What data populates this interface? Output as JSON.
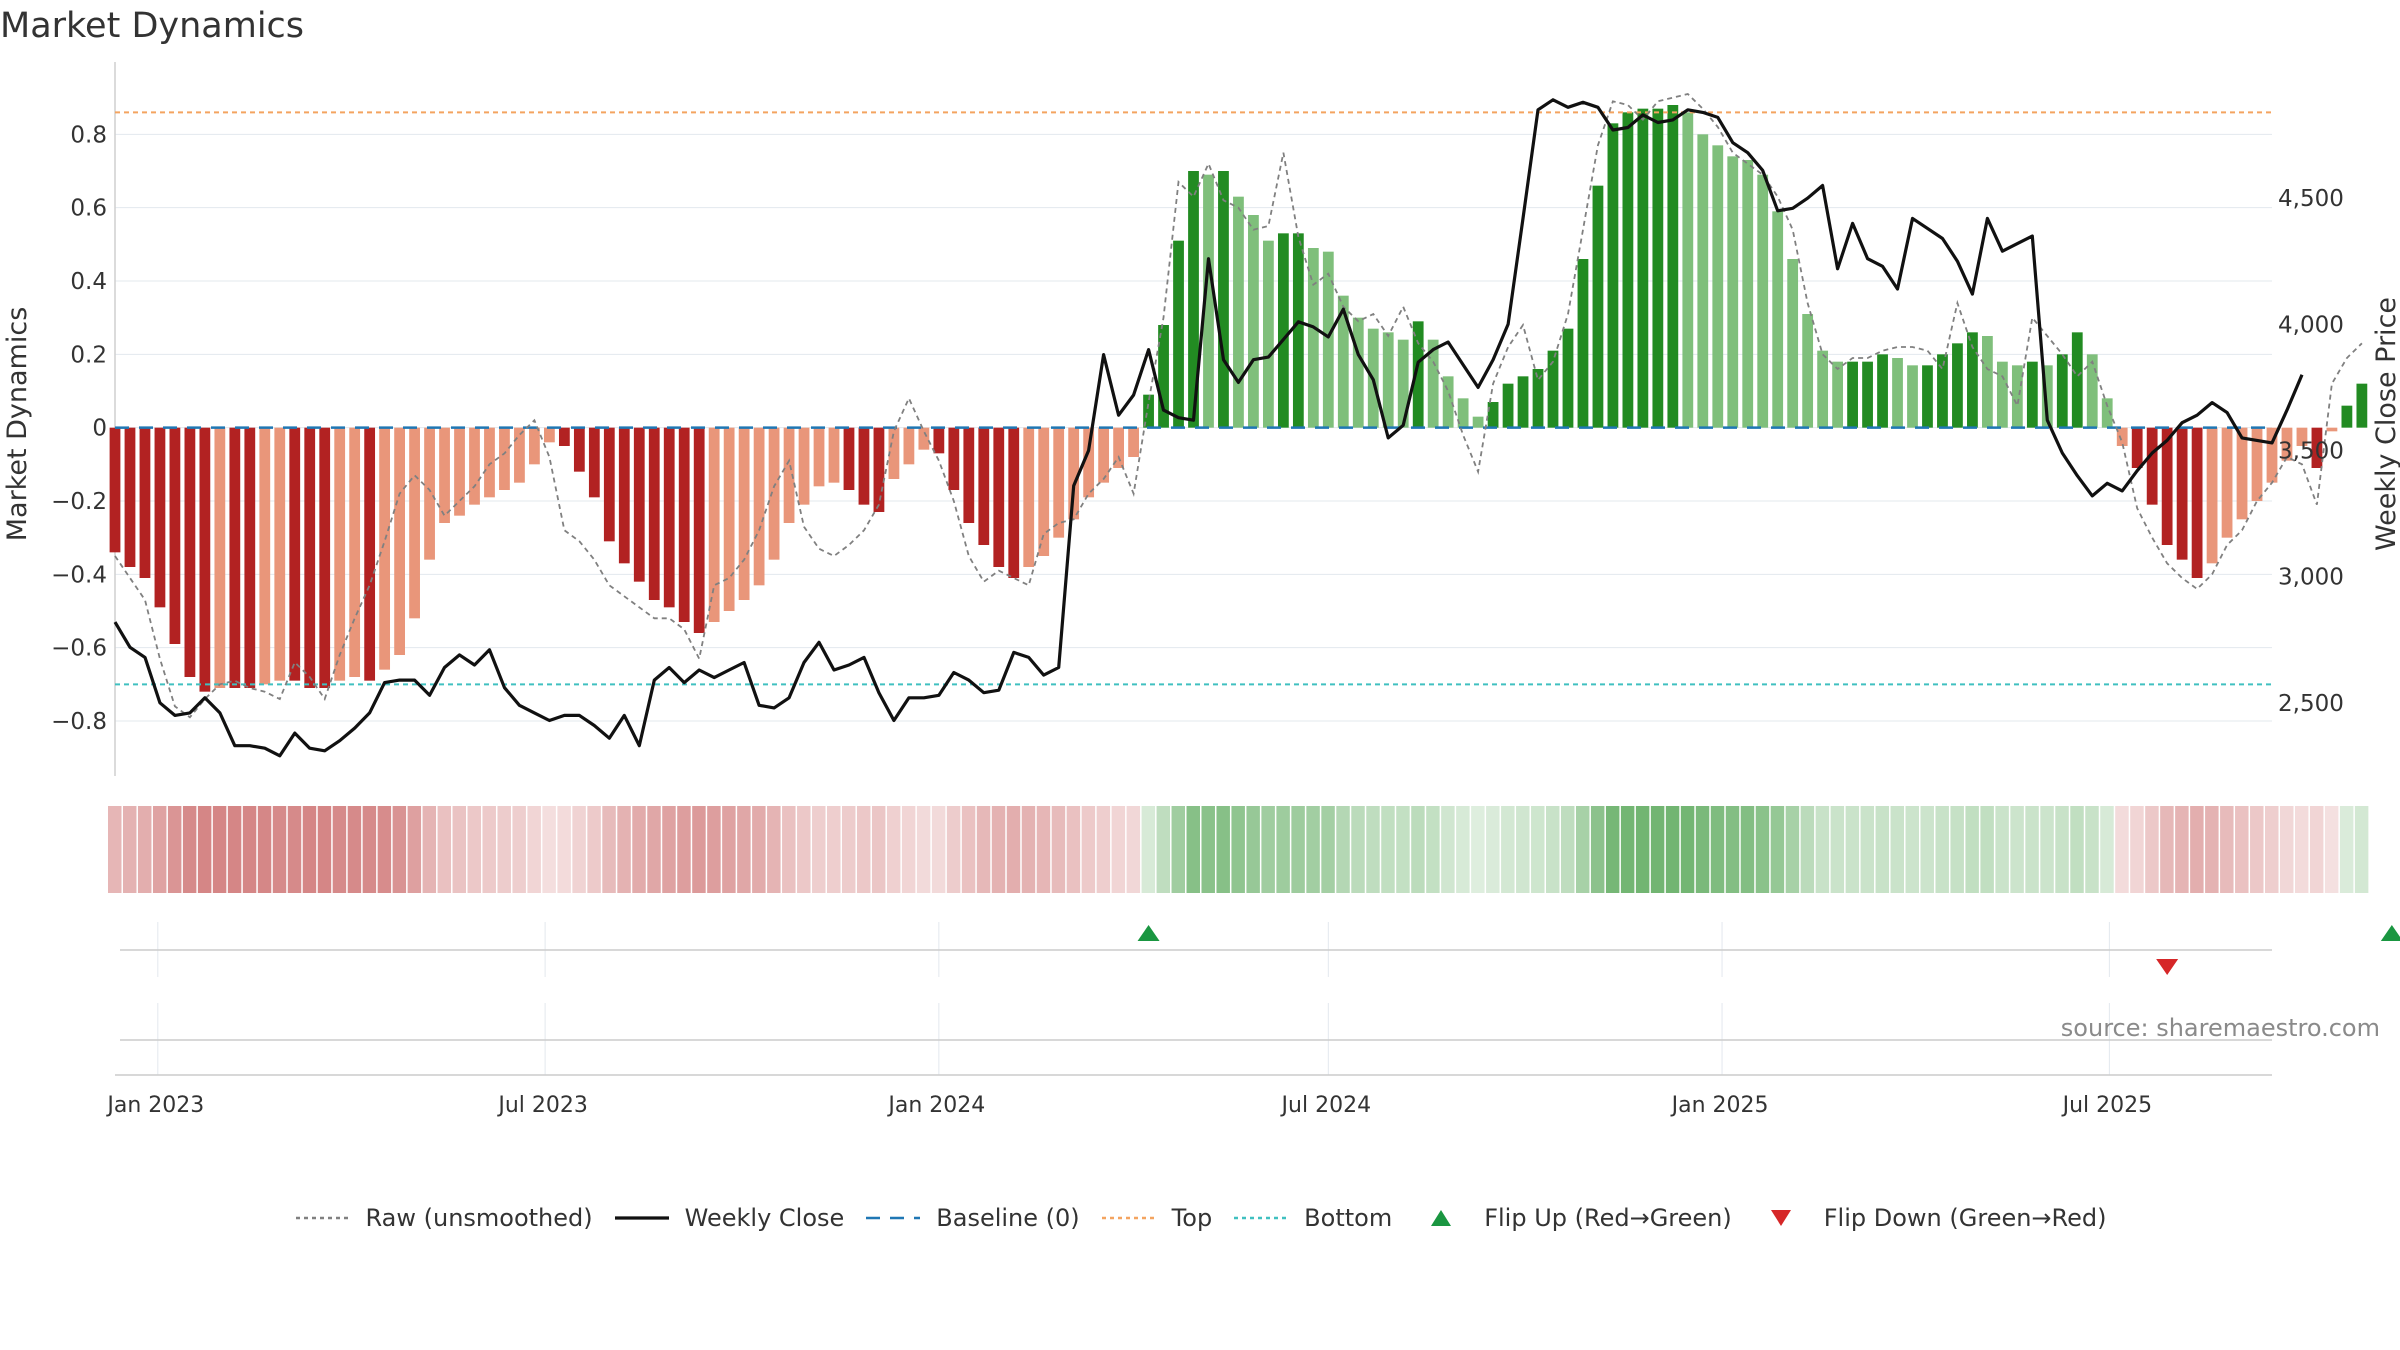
{
  "title": "Market Dynamics",
  "source": "source: sharemaestro.com",
  "colors": {
    "red_strong": "#b22222",
    "red_light": "#e9967a",
    "green_strong": "#228b22",
    "green_light": "#7fbf7b",
    "raw": "#808080",
    "close": "#111111",
    "baseline": "#1f77b4",
    "top": "#f4a460",
    "bottom": "#40c0c0",
    "flip_up": "#1a9641",
    "flip_down": "#d62728"
  },
  "legend": [
    {
      "key": "raw",
      "label": "Raw (unsmoothed)",
      "style": "dotted"
    },
    {
      "key": "close",
      "label": "Weekly Close",
      "style": "solid"
    },
    {
      "key": "baseline",
      "label": "Baseline (0)",
      "style": "dashed"
    },
    {
      "key": "top",
      "label": "Top",
      "style": "dotted"
    },
    {
      "key": "bottom",
      "label": "Bottom",
      "style": "dotted"
    },
    {
      "key": "flip_up",
      "label": "Flip Up (Red→Green)",
      "style": "tri-up"
    },
    {
      "key": "flip_down",
      "label": "Flip Down (Green→Red)",
      "style": "tri-down"
    }
  ],
  "chart_data": {
    "type": "bar",
    "title": "Market Dynamics",
    "ylabel": "Market Dynamics",
    "ylabel_right": "Weekly Close Price",
    "ylim": [
      -0.95,
      0.97
    ],
    "ylim_right": [
      2210,
      5000
    ],
    "yticks": [
      -0.8,
      -0.6,
      -0.4,
      -0.2,
      0,
      0.2,
      0.4,
      0.6,
      0.8
    ],
    "ytick_labels": [
      "−0.8",
      "−0.6",
      "−0.4",
      "−0.2",
      "0",
      "0.2",
      "0.4",
      "0.6",
      "0.8"
    ],
    "yticks_right": [
      2500,
      3000,
      3500,
      4000,
      4500
    ],
    "ytick_right_labels": [
      "2,500",
      "3,000",
      "3,500",
      "4,000",
      "4,500"
    ],
    "top_level": 0.86,
    "bottom_level": -0.7,
    "baseline": 0,
    "x_start": "2022-12-12",
    "x_end": "2025-09-15",
    "week_start": "2022-12-12",
    "xticks": [
      "2023-01-01",
      "2023-07-01",
      "2024-01-01",
      "2024-07-01",
      "2025-01-01",
      "2025-07-01"
    ],
    "xtick_labels": [
      "Jan 2023",
      "Jul 2023",
      "Jan 2024",
      "Jul 2024",
      "Jan 2025",
      "Jul 2025"
    ],
    "grid": true,
    "legend_position": "bottom-center",
    "bar_values": [
      -0.34,
      -0.38,
      -0.41,
      -0.49,
      -0.59,
      -0.68,
      -0.72,
      -0.71,
      -0.71,
      -0.71,
      -0.7,
      -0.69,
      -0.69,
      -0.71,
      -0.71,
      -0.69,
      -0.68,
      -0.69,
      -0.66,
      -0.62,
      -0.52,
      -0.36,
      -0.26,
      -0.24,
      -0.21,
      -0.19,
      -0.17,
      -0.15,
      -0.1,
      -0.04,
      -0.05,
      -0.12,
      -0.19,
      -0.31,
      -0.37,
      -0.42,
      -0.47,
      -0.49,
      -0.53,
      -0.56,
      -0.53,
      -0.5,
      -0.47,
      -0.43,
      -0.36,
      -0.26,
      -0.21,
      -0.16,
      -0.15,
      -0.17,
      -0.21,
      -0.23,
      -0.14,
      -0.1,
      -0.06,
      -0.07,
      -0.17,
      -0.26,
      -0.32,
      -0.38,
      -0.41,
      -0.38,
      -0.35,
      -0.3,
      -0.25,
      -0.19,
      -0.15,
      -0.11,
      -0.08,
      0.09,
      0.28,
      0.51,
      0.7,
      0.69,
      0.7,
      0.63,
      0.58,
      0.51,
      0.53,
      0.53,
      0.49,
      0.48,
      0.36,
      0.3,
      0.27,
      0.26,
      0.24,
      0.29,
      0.24,
      0.14,
      0.08,
      0.03,
      0.07,
      0.12,
      0.14,
      0.16,
      0.21,
      0.27,
      0.46,
      0.66,
      0.83,
      0.86,
      0.87,
      0.87,
      0.88,
      0.86,
      0.8,
      0.77,
      0.74,
      0.73,
      0.69,
      0.59,
      0.46,
      0.31,
      0.21,
      0.18,
      0.18,
      0.18,
      0.2,
      0.19,
      0.17,
      0.17,
      0.2,
      0.23,
      0.26,
      0.25,
      0.18,
      0.17,
      0.18,
      0.17,
      0.2,
      0.26,
      0.2,
      0.08,
      -0.05,
      -0.11,
      -0.21,
      -0.32,
      -0.36,
      -0.41,
      -0.37,
      -0.3,
      -0.25,
      -0.2,
      -0.15,
      -0.09,
      -0.05,
      -0.11,
      -0.01,
      0.06,
      0.12
    ],
    "raw_values": [
      -0.35,
      -0.41,
      -0.47,
      -0.63,
      -0.76,
      -0.79,
      -0.74,
      -0.7,
      -0.69,
      -0.71,
      -0.72,
      -0.74,
      -0.64,
      -0.68,
      -0.74,
      -0.62,
      -0.52,
      -0.43,
      -0.31,
      -0.18,
      -0.13,
      -0.17,
      -0.24,
      -0.2,
      -0.16,
      -0.1,
      -0.07,
      -0.02,
      0.02,
      -0.08,
      -0.28,
      -0.31,
      -0.36,
      -0.43,
      -0.46,
      -0.49,
      -0.52,
      -0.52,
      -0.55,
      -0.63,
      -0.43,
      -0.41,
      -0.36,
      -0.28,
      -0.16,
      -0.09,
      -0.27,
      -0.33,
      -0.35,
      -0.32,
      -0.28,
      -0.21,
      -0.01,
      0.08,
      -0.01,
      -0.09,
      -0.2,
      -0.35,
      -0.42,
      -0.39,
      -0.41,
      -0.43,
      -0.29,
      -0.26,
      -0.25,
      -0.18,
      -0.14,
      -0.08,
      -0.18,
      0.07,
      0.3,
      0.67,
      0.63,
      0.72,
      0.62,
      0.6,
      0.54,
      0.55,
      0.75,
      0.52,
      0.39,
      0.42,
      0.33,
      0.29,
      0.31,
      0.25,
      0.33,
      0.23,
      0.18,
      0.1,
      -0.02,
      -0.12,
      0.12,
      0.22,
      0.28,
      0.13,
      0.18,
      0.31,
      0.54,
      0.77,
      0.89,
      0.88,
      0.84,
      0.89,
      0.9,
      0.91,
      0.87,
      0.82,
      0.75,
      0.72,
      0.69,
      0.63,
      0.54,
      0.34,
      0.2,
      0.16,
      0.19,
      0.19,
      0.21,
      0.22,
      0.22,
      0.21,
      0.16,
      0.34,
      0.22,
      0.16,
      0.14,
      0.06,
      0.3,
      0.25,
      0.2,
      0.14,
      0.18,
      0.06,
      -0.04,
      -0.22,
      -0.3,
      -0.37,
      -0.41,
      -0.44,
      -0.4,
      -0.32,
      -0.28,
      -0.2,
      -0.15,
      -0.08,
      -0.1,
      -0.21,
      0.12,
      0.19,
      0.23
    ],
    "close_values": [
      2820,
      2720,
      2680,
      2500,
      2450,
      2460,
      2520,
      2460,
      2330,
      2330,
      2320,
      2290,
      2380,
      2320,
      2310,
      2350,
      2400,
      2460,
      2580,
      2590,
      2590,
      2530,
      2640,
      2690,
      2650,
      2710,
      2560,
      2490,
      2460,
      2430,
      2450,
      2450,
      2410,
      2360,
      2450,
      2330,
      2590,
      2640,
      2580,
      2630,
      2600,
      2630,
      2660,
      2490,
      2480,
      2520,
      2660,
      2740,
      2630,
      2650,
      2680,
      2540,
      2430,
      2520,
      2520,
      2530,
      2620,
      2590,
      2540,
      2550,
      2700,
      2680,
      2610,
      2640,
      3360,
      3500,
      3880,
      3640,
      3720,
      3900,
      3660,
      3630,
      3620,
      4260,
      3860,
      3770,
      3860,
      3870,
      3940,
      4010,
      3990,
      3950,
      4060,
      3880,
      3780,
      3550,
      3600,
      3850,
      3900,
      3930,
      3840,
      3750,
      3860,
      4000,
      4420,
      4850,
      4890,
      4860,
      4880,
      4860,
      4770,
      4780,
      4830,
      4800,
      4810,
      4850,
      4840,
      4820,
      4720,
      4680,
      4610,
      4450,
      4460,
      4500,
      4550,
      4220,
      4400,
      4260,
      4230,
      4140,
      4420,
      4380,
      4340,
      4250,
      4120,
      4420,
      4290,
      4320,
      4350,
      3620,
      3490,
      3400,
      3320,
      3370,
      3340,
      3420,
      3490,
      3540,
      3610,
      3640,
      3690,
      3650,
      3550,
      3540,
      3530,
      3660,
      3800
    ],
    "palette_levels": [
      0.55,
      0.45,
      0.75,
      0.3,
      0.1
    ],
    "flip_up_weeks": [
      69,
      152
    ],
    "flip_down_weeks": [
      137
    ]
  }
}
